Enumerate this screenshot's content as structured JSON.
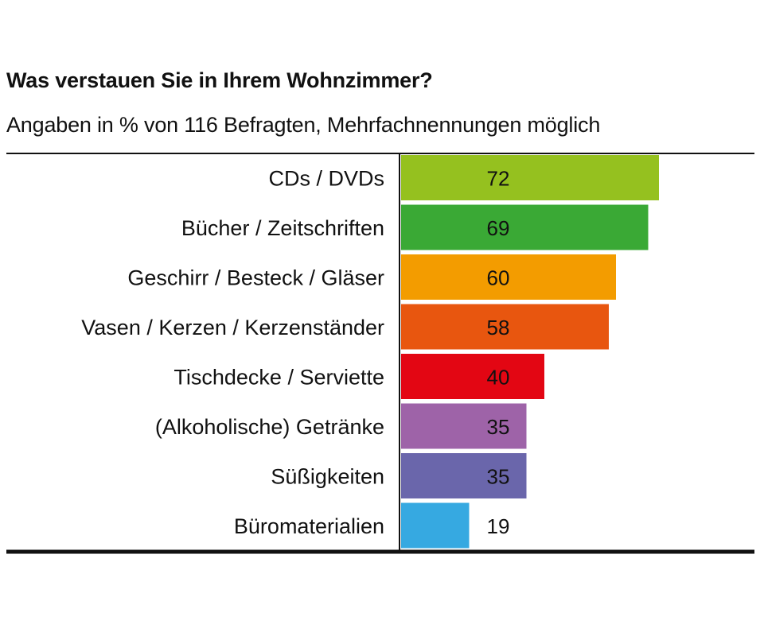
{
  "chart_data": {
    "type": "bar",
    "orientation": "horizontal",
    "title": "Was verstauen Sie in Ihrem Wohnzimmer?",
    "subtitle": "Angaben in % von 116 Befragten, Mehrfachnennungen möglich",
    "categories": [
      "CDs / DVDs",
      "Bücher / Zeitschriften",
      "Geschirr / Besteck / Gläser",
      "Vasen / Kerzen / Kerzenständer",
      "Tischdecke / Serviette",
      "(Alkoholische) Getränke",
      "Süßigkeiten",
      "Büromaterialien"
    ],
    "values": [
      72,
      69,
      60,
      58,
      40,
      35,
      35,
      19
    ],
    "colors": [
      "#95c11f",
      "#3aa935",
      "#f39c00",
      "#e8560f",
      "#e30613",
      "#9e63a8",
      "#6a66ab",
      "#36a9e1"
    ],
    "xlim": [
      0,
      100
    ],
    "grid": false,
    "legend": "none"
  }
}
